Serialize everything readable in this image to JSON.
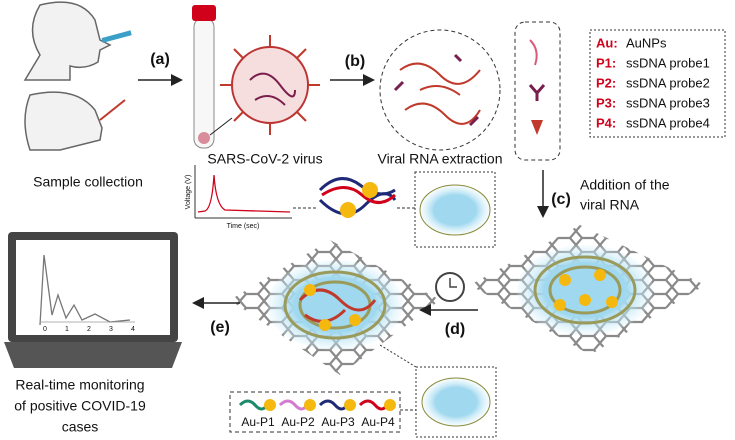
{
  "steps": {
    "sample": "Sample collection",
    "a": "(a)",
    "virus": "SARS-CoV-2 virus",
    "b": "(b)",
    "extraction": "Viral RNA extraction",
    "c": "(c)",
    "addition": [
      "Addition of the",
      "viral RNA"
    ],
    "d": "(d)",
    "e": "(e)",
    "monitoring": [
      "Real-time monitoring",
      "of positive COVID-19",
      "cases"
    ]
  },
  "legend": [
    {
      "key": "Au:",
      "label": "AuNPs"
    },
    {
      "key": "P1:",
      "label": "ssDNA probe1"
    },
    {
      "key": "P2:",
      "label": "ssDNA probe2"
    },
    {
      "key": "P3:",
      "label": "ssDNA probe3"
    },
    {
      "key": "P4:",
      "label": "ssDNA probe4"
    }
  ],
  "signal_plot": {
    "ylabel": "Voltage (V)",
    "xlabel": "Time (sec)"
  },
  "laptop_plot": {
    "xticks": [
      "0",
      "1",
      "2",
      "3",
      "4"
    ]
  },
  "probes": [
    "Au-P1",
    "Au-P2",
    "Au-P3",
    "Au-P4"
  ]
}
